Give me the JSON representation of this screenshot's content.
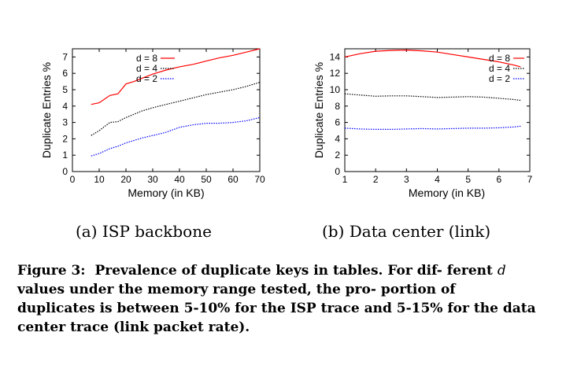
{
  "figure": {
    "caption_label": "Figure 3:",
    "caption_part1": "Prevalence of duplicate keys in tables. For dif-",
    "caption_part2": "ferent",
    "caption_var": "d",
    "caption_part3": "values under the memory range tested, the pro-",
    "caption_part4": "portion of duplicates is between 5-10% for the ISP trace",
    "caption_part5": "and 5-15% for the data center trace (link packet rate)."
  },
  "chart_data": [
    {
      "type": "line",
      "subcaption": "(a) ISP backbone",
      "xlabel": "Memory (in KB)",
      "ylabel": "Duplicate Entries %",
      "xlim": [
        0,
        70
      ],
      "ylim": [
        0,
        7.5
      ],
      "xticks": [
        0,
        10,
        20,
        30,
        40,
        50,
        60,
        70
      ],
      "yticks": [
        0,
        1,
        2,
        3,
        4,
        5,
        6,
        7
      ],
      "grid": false,
      "legend_position": "top-right",
      "series": [
        {
          "name": "d = 8",
          "color": "#ff0000",
          "dash": "solid",
          "x": [
            7,
            10,
            14,
            17,
            20,
            23,
            26,
            30,
            35,
            40,
            45,
            50,
            55,
            60,
            65,
            70
          ],
          "y": [
            4.1,
            4.2,
            4.65,
            4.75,
            5.35,
            5.5,
            5.7,
            5.95,
            6.2,
            6.4,
            6.55,
            6.75,
            6.95,
            7.1,
            7.3,
            7.5
          ]
        },
        {
          "name": "d = 4",
          "color": "#000000",
          "dash": "dotted",
          "x": [
            7,
            10,
            14,
            17,
            20,
            23,
            26,
            30,
            35,
            40,
            45,
            50,
            55,
            60,
            65,
            70
          ],
          "y": [
            2.2,
            2.5,
            3.0,
            3.05,
            3.3,
            3.5,
            3.7,
            3.9,
            4.1,
            4.3,
            4.5,
            4.7,
            4.85,
            5.0,
            5.2,
            5.45
          ]
        },
        {
          "name": "d = 2",
          "color": "#0000ff",
          "dash": "dotted",
          "x": [
            7,
            10,
            14,
            17,
            20,
            23,
            26,
            30,
            35,
            40,
            45,
            50,
            55,
            60,
            65,
            70
          ],
          "y": [
            0.95,
            1.1,
            1.4,
            1.55,
            1.75,
            1.9,
            2.05,
            2.2,
            2.4,
            2.7,
            2.85,
            2.95,
            2.95,
            3.0,
            3.1,
            3.3
          ]
        }
      ]
    },
    {
      "type": "line",
      "subcaption": "(b) Data center (link)",
      "xlabel": "Memory (in KB)",
      "ylabel": "Duplicate Entries %",
      "xlim": [
        1,
        7
      ],
      "ylim": [
        0,
        15
      ],
      "xticks": [
        1,
        2,
        3,
        4,
        5,
        6,
        7
      ],
      "yticks": [
        0,
        2,
        4,
        6,
        8,
        10,
        12,
        14
      ],
      "grid": false,
      "legend_position": "top-right",
      "series": [
        {
          "name": "d = 8",
          "color": "#ff0000",
          "dash": "solid",
          "x": [
            1.0,
            1.5,
            2.0,
            2.5,
            3.0,
            3.5,
            4.0,
            4.5,
            5.0,
            5.5,
            6.0,
            6.5,
            6.7
          ],
          "y": [
            14.0,
            14.4,
            14.7,
            14.8,
            14.85,
            14.75,
            14.6,
            14.3,
            14.0,
            13.7,
            13.4,
            13.0,
            12.8
          ]
        },
        {
          "name": "d = 4",
          "color": "#000000",
          "dash": "dotted",
          "x": [
            1.0,
            1.5,
            2.0,
            2.5,
            3.0,
            3.5,
            4.0,
            4.5,
            5.0,
            5.5,
            6.0,
            6.5,
            6.7
          ],
          "y": [
            9.5,
            9.35,
            9.2,
            9.25,
            9.25,
            9.15,
            9.05,
            9.1,
            9.15,
            9.1,
            8.95,
            8.8,
            8.7
          ]
        },
        {
          "name": "d = 2",
          "color": "#0000ff",
          "dash": "dotted",
          "x": [
            1.0,
            1.5,
            2.0,
            2.5,
            3.0,
            3.5,
            4.0,
            4.5,
            5.0,
            5.5,
            6.0,
            6.5,
            6.7
          ],
          "y": [
            5.3,
            5.2,
            5.15,
            5.15,
            5.2,
            5.25,
            5.2,
            5.25,
            5.3,
            5.3,
            5.35,
            5.45,
            5.55
          ]
        }
      ]
    }
  ]
}
